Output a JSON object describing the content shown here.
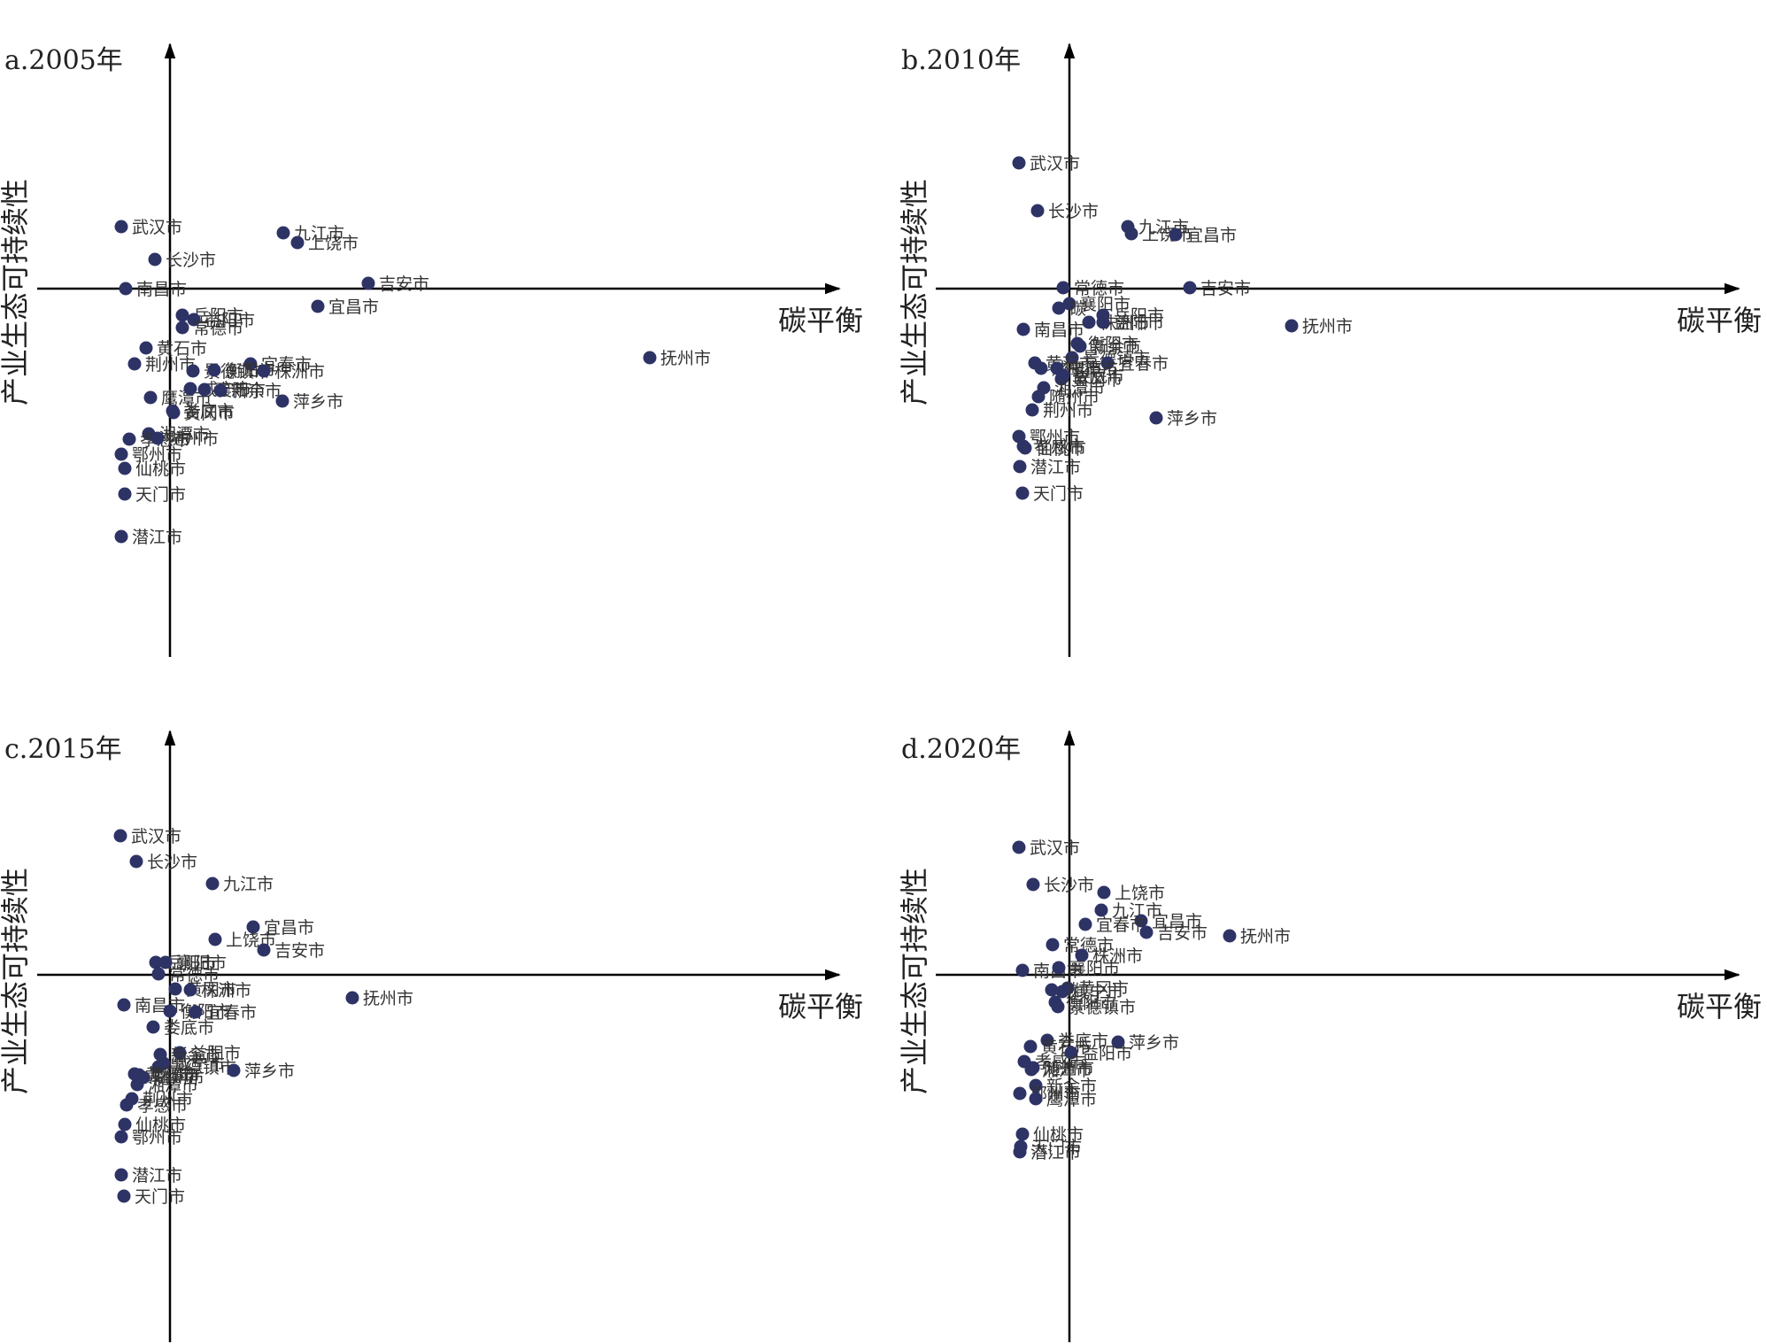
{
  "style": {
    "point_color": "#2e3366",
    "axis_color": "#000000"
  },
  "chart_data": [
    {
      "type": "scatter",
      "title": "a.2005年",
      "xlabel": "碳平衡",
      "ylabel": "产业生态可持续性",
      "grid": false,
      "points": [
        {
          "label": "武汉市",
          "x": -55,
          "y": 70
        },
        {
          "label": "长沙市",
          "x": -17,
          "y": 33
        },
        {
          "label": "九江市",
          "x": 128,
          "y": 63
        },
        {
          "label": "上饶市",
          "x": 144,
          "y": 52
        },
        {
          "label": "南昌市",
          "x": -50,
          "y": 0
        },
        {
          "label": "吉安市",
          "x": 224,
          "y": 6
        },
        {
          "label": "宜昌市",
          "x": 167,
          "y": -20
        },
        {
          "label": "岳阳市",
          "x": 14,
          "y": -30
        },
        {
          "label": "益阳市",
          "x": 27,
          "y": -35
        },
        {
          "label": "常德市",
          "x": 14,
          "y": -44
        },
        {
          "label": "黄石市",
          "x": -27,
          "y": -67
        },
        {
          "label": "荆州市",
          "x": -40,
          "y": -85
        },
        {
          "label": "抚州市",
          "x": 542,
          "y": -78
        },
        {
          "label": "宜春市",
          "x": 91,
          "y": -85
        },
        {
          "label": "景德镇市",
          "x": 26,
          "y": -93
        },
        {
          "label": "衡阳市",
          "x": 50,
          "y": -92
        },
        {
          "label": "株洲市",
          "x": 106,
          "y": -93
        },
        {
          "label": "鹰潭市",
          "x": -22,
          "y": -123
        },
        {
          "label": "咸宁市",
          "x": 23,
          "y": -113
        },
        {
          "label": "襄阳市",
          "x": 39,
          "y": -114
        },
        {
          "label": "新余市",
          "x": 57,
          "y": -115
        },
        {
          "label": "萍乡市",
          "x": 127,
          "y": -127
        },
        {
          "label": "娄底市",
          "x": 3,
          "y": -138
        },
        {
          "label": "黄冈市",
          "x": 4,
          "y": -140
        },
        {
          "label": "湘潭市",
          "x": -24,
          "y": -164
        },
        {
          "label": "孝感市",
          "x": -46,
          "y": -170
        },
        {
          "label": "随州市",
          "x": -14,
          "y": -169
        },
        {
          "label": "鄂州市",
          "x": -55,
          "y": -187
        },
        {
          "label": "仙桃市",
          "x": -51,
          "y": -203
        },
        {
          "label": "天门市",
          "x": -51,
          "y": -232
        },
        {
          "label": "潜江市",
          "x": -55,
          "y": -280
        }
      ]
    },
    {
      "type": "scatter",
      "title": "b.2010年",
      "xlabel": "碳平衡",
      "ylabel": "产业生态可持续性",
      "grid": false,
      "points": [
        {
          "label": "武汉市",
          "x": -57,
          "y": 142
        },
        {
          "label": "长沙市",
          "x": -36,
          "y": 88
        },
        {
          "label": "九江市",
          "x": 66,
          "y": 70
        },
        {
          "label": "上饶市",
          "x": 70,
          "y": 62
        },
        {
          "label": "宜昌市",
          "x": 120,
          "y": 61
        },
        {
          "label": "常德市",
          "x": -7,
          "y": 1
        },
        {
          "label": "吉安市",
          "x": 136,
          "y": 1
        },
        {
          "label": "襄阳市",
          "x": 0,
          "y": -17
        },
        {
          "label": "碳",
          "x": -12,
          "y": -22
        },
        {
          "label": "岳阳市",
          "x": 38,
          "y": -30
        },
        {
          "label": "株洲市",
          "x": 22,
          "y": -38
        },
        {
          "label": "益阳市",
          "x": 38,
          "y": -38
        },
        {
          "label": "南昌市",
          "x": -52,
          "y": -46
        },
        {
          "label": "抚州市",
          "x": 251,
          "y": -42
        },
        {
          "label": "衡阳市",
          "x": 9,
          "y": -62
        },
        {
          "label": "新余市",
          "x": 12,
          "y": -65
        },
        {
          "label": "景德镇市",
          "x": 3,
          "y": -78
        },
        {
          "label": "宜春市",
          "x": 43,
          "y": -84
        },
        {
          "label": "黄石市",
          "x": -39,
          "y": -84
        },
        {
          "label": "咸宁市",
          "x": -32,
          "y": -90
        },
        {
          "label": "鹰潭市",
          "x": -14,
          "y": -90
        },
        {
          "label": "娄底市",
          "x": -7,
          "y": -98
        },
        {
          "label": "黄冈市",
          "x": -9,
          "y": -102
        },
        {
          "label": "湘潭市",
          "x": -29,
          "y": -112
        },
        {
          "label": "随州市",
          "x": -35,
          "y": -122
        },
        {
          "label": "荆州市",
          "x": -42,
          "y": -137
        },
        {
          "label": "萍乡市",
          "x": 98,
          "y": -146
        },
        {
          "label": "鄂州市",
          "x": -57,
          "y": -167
        },
        {
          "label": "孝感市",
          "x": -52,
          "y": -178
        },
        {
          "label": "仙桃市",
          "x": -50,
          "y": -180
        },
        {
          "label": "潜江市",
          "x": -56,
          "y": -201
        },
        {
          "label": "天门市",
          "x": -53,
          "y": -231
        }
      ]
    },
    {
      "type": "scatter",
      "title": "c.2015年",
      "xlabel": "碳平衡",
      "ylabel": "产业生态可持续性",
      "grid": false,
      "points": [
        {
          "label": "武汉市",
          "x": -56,
          "y": 157
        },
        {
          "label": "长沙市",
          "x": -38,
          "y": 128
        },
        {
          "label": "九江市",
          "x": 48,
          "y": 103
        },
        {
          "label": "宜昌市",
          "x": 94,
          "y": 54
        },
        {
          "label": "上饶市",
          "x": 51,
          "y": 40
        },
        {
          "label": "吉安市",
          "x": 106,
          "y": 28
        },
        {
          "label": "岳阳市",
          "x": -16,
          "y": 14
        },
        {
          "label": "襄阳市",
          "x": -5,
          "y": 14
        },
        {
          "label": "常德市",
          "x": -13,
          "y": 1
        },
        {
          "label": "黄冈市",
          "x": 6,
          "y": -16
        },
        {
          "label": "株洲市",
          "x": 23,
          "y": -17
        },
        {
          "label": "抚州市",
          "x": 206,
          "y": -26
        },
        {
          "label": "南昌市",
          "x": -52,
          "y": -34
        },
        {
          "label": "衡阳市",
          "x": 0,
          "y": -41
        },
        {
          "label": "宜春市",
          "x": 29,
          "y": -42
        },
        {
          "label": "娄底市",
          "x": -19,
          "y": -59
        },
        {
          "label": "益阳市",
          "x": 11,
          "y": -88
        },
        {
          "label": "新余市",
          "x": -11,
          "y": -90
        },
        {
          "label": "咸宁市",
          "x": -7,
          "y": -100
        },
        {
          "label": "景德镇市",
          "x": -13,
          "y": -104
        },
        {
          "label": "萍乡市",
          "x": 72,
          "y": -108
        },
        {
          "label": "黄石市",
          "x": -40,
          "y": -112
        },
        {
          "label": "鹰潭市",
          "x": -35,
          "y": -113
        },
        {
          "label": "随州市",
          "x": -30,
          "y": -116
        },
        {
          "label": "湘潭市",
          "x": -37,
          "y": -124
        },
        {
          "label": "荆州市",
          "x": -43,
          "y": -140
        },
        {
          "label": "孝感市",
          "x": -49,
          "y": -147
        },
        {
          "label": "仙桃市",
          "x": -51,
          "y": -169
        },
        {
          "label": "鄂州市",
          "x": -55,
          "y": -183
        },
        {
          "label": "潜江市",
          "x": -55,
          "y": -226
        },
        {
          "label": "天门市",
          "x": -52,
          "y": -250
        }
      ]
    },
    {
      "type": "scatter",
      "title": "d.2020年",
      "xlabel": "碳平衡",
      "ylabel": "产业生态可持续性",
      "grid": false,
      "points": [
        {
          "label": "武汉市",
          "x": -57,
          "y": 144
        },
        {
          "label": "长沙市",
          "x": -41,
          "y": 102
        },
        {
          "label": "上饶市",
          "x": 39,
          "y": 93
        },
        {
          "label": "九江市",
          "x": 36,
          "y": 73
        },
        {
          "label": "宜昌市",
          "x": 81,
          "y": 61
        },
        {
          "label": "宜春市",
          "x": 18,
          "y": 57
        },
        {
          "label": "吉安市",
          "x": 87,
          "y": 48
        },
        {
          "label": "抚州市",
          "x": 181,
          "y": 44
        },
        {
          "label": "常德市",
          "x": -19,
          "y": 34
        },
        {
          "label": "株洲市",
          "x": 14,
          "y": 22
        },
        {
          "label": "南昌市",
          "x": -53,
          "y": 5
        },
        {
          "label": "襄阳市",
          "x": -12,
          "y": 8
        },
        {
          "label": "黄冈市",
          "x": -2,
          "y": -15
        },
        {
          "label": "碳",
          "x": -20,
          "y": -17
        },
        {
          "label": "咸宁市",
          "x": -8,
          "y": -19
        },
        {
          "label": "衡阳市",
          "x": -16,
          "y": -31
        },
        {
          "label": "景德镇市",
          "x": -13,
          "y": -36
        },
        {
          "label": "娄底市",
          "x": -25,
          "y": -74
        },
        {
          "label": "萍乡市",
          "x": 55,
          "y": -76
        },
        {
          "label": "黄石市",
          "x": -44,
          "y": -81
        },
        {
          "label": "益阳市",
          "x": 2,
          "y": -88
        },
        {
          "label": "孝感市",
          "x": -51,
          "y": -98
        },
        {
          "label": "随州市",
          "x": -41,
          "y": -105
        },
        {
          "label": "湘潭市",
          "x": -43,
          "y": -107
        },
        {
          "label": "新余市",
          "x": -38,
          "y": -125
        },
        {
          "label": "鄂州市",
          "x": -56,
          "y": -134
        },
        {
          "label": "鹰潭市",
          "x": -38,
          "y": -140
        },
        {
          "label": "仙桃市",
          "x": -53,
          "y": -180
        },
        {
          "label": "天门市",
          "x": -55,
          "y": -194
        },
        {
          "label": "潜江市",
          "x": -56,
          "y": -200
        }
      ]
    }
  ]
}
